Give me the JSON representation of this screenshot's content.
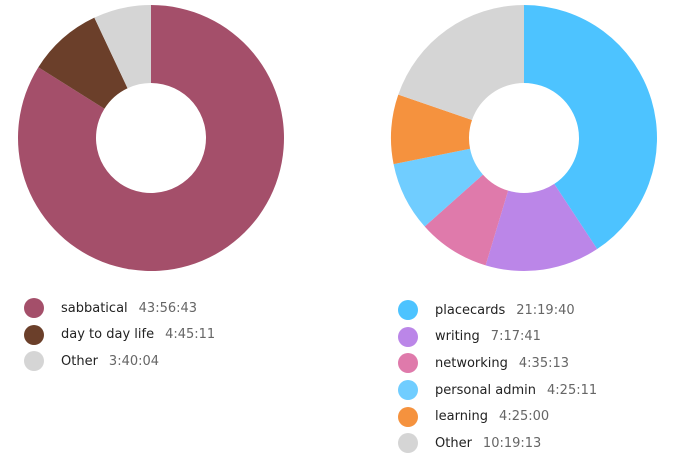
{
  "chart_data": [
    {
      "type": "pie",
      "donut": true,
      "legend_placement": "bottom",
      "slices": [
        {
          "label": "sabbatical",
          "value_text": "43:56:43",
          "seconds": 158203,
          "color": "#a44f6a"
        },
        {
          "label": "day to day life",
          "value_text": "4:45:11",
          "seconds": 17111,
          "color": "#6b3f2a"
        },
        {
          "label": "Other",
          "value_text": "3:40:04",
          "seconds": 13204,
          "color": "#d5d5d5"
        }
      ]
    },
    {
      "type": "pie",
      "donut": true,
      "legend_placement": "bottom",
      "slices": [
        {
          "label": "placecards",
          "value_text": "21:19:40",
          "seconds": 76780,
          "color": "#4dc3ff"
        },
        {
          "label": "writing",
          "value_text": "7:17:41",
          "seconds": 26261,
          "color": "#bb86e8"
        },
        {
          "label": "networking",
          "value_text": "4:35:13",
          "seconds": 16513,
          "color": "#df7aab"
        },
        {
          "label": "personal admin",
          "value_text": "4:25:11",
          "seconds": 15911,
          "color": "#70cdff"
        },
        {
          "label": "learning",
          "value_text": "4:25:00",
          "seconds": 15900,
          "color": "#f5923e"
        },
        {
          "label": "Other",
          "value_text": "10:19:13",
          "seconds": 37153,
          "color": "#d5d5d5"
        }
      ]
    }
  ]
}
